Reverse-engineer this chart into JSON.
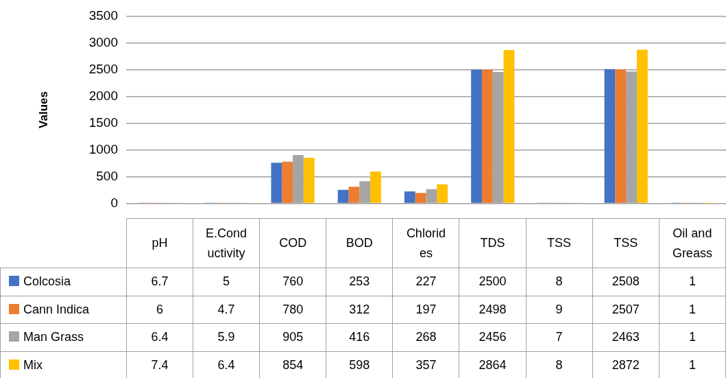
{
  "chart_data": {
    "type": "bar",
    "ylabel": "Values",
    "categories": [
      "pH",
      "E.Conductivity",
      "COD",
      "BOD",
      "Chlorides",
      "TDS",
      "TSS",
      "TSS",
      "Oil and Greass"
    ],
    "series": [
      {
        "name": "Colcosia",
        "color": "#4472c4",
        "values": [
          6.7,
          5,
          760,
          253,
          227,
          2500,
          8,
          2508,
          1
        ]
      },
      {
        "name": "Cann Indica",
        "color": "#ed7d31",
        "values": [
          6,
          4.7,
          780,
          312,
          197,
          2498,
          9,
          2507,
          1
        ]
      },
      {
        "name": "Man Grass",
        "color": "#a5a5a5",
        "values": [
          6.4,
          5.9,
          905,
          416,
          268,
          2456,
          7,
          2463,
          1
        ]
      },
      {
        "name": "Mix",
        "color": "#ffc000",
        "values": [
          7.4,
          6.4,
          854,
          598,
          357,
          2864,
          8,
          2872,
          1
        ]
      }
    ],
    "ylim": [
      0,
      3500
    ],
    "yticks": [
      0,
      500,
      1000,
      1500,
      2000,
      2500,
      3000,
      3500
    ],
    "grid": "y",
    "legend": "bottom",
    "data_labels": true
  }
}
